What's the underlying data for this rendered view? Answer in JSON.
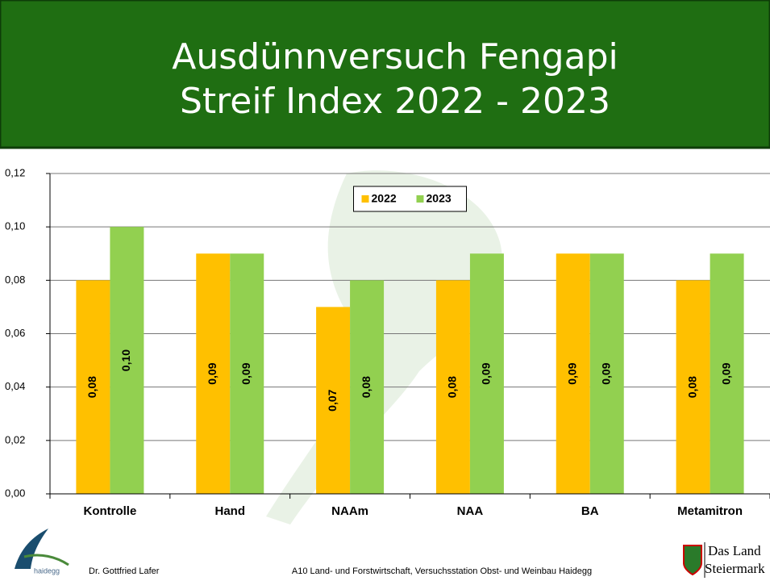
{
  "title_lines": [
    "Ausdünnversuch Fengapi",
    "Streif Index 2022 - 2023"
  ],
  "chart_data": {
    "type": "bar",
    "categories": [
      "Kontrolle",
      "Hand",
      "NAAm",
      "NAA",
      "BA",
      "Metamitron"
    ],
    "series": [
      {
        "name": "2022",
        "color": "#ffc000",
        "values": [
          0.08,
          0.09,
          0.07,
          0.08,
          0.09,
          0.08
        ],
        "value_labels": [
          "0,08",
          "0,09",
          "0,07",
          "0,08",
          "0,09",
          "0,08"
        ]
      },
      {
        "name": "2023",
        "color": "#92d050",
        "values": [
          0.1,
          0.09,
          0.08,
          0.09,
          0.09,
          0.09
        ],
        "value_labels": [
          "0,10",
          "0,09",
          "0,08",
          "0,09",
          "0,09",
          "0,09"
        ]
      }
    ],
    "ylim": [
      0,
      0.12
    ],
    "yticks": [
      {
        "value": 0,
        "label": "0,00"
      },
      {
        "value": 0.02,
        "label": "0,02"
      },
      {
        "value": 0.04,
        "label": "0,04"
      },
      {
        "value": 0.06,
        "label": "0,06"
      },
      {
        "value": 0.08,
        "label": "0,08"
      },
      {
        "value": 0.1,
        "label": "0,10"
      },
      {
        "value": 0.12,
        "label": "0,12"
      }
    ],
    "grid": true,
    "legend": "top"
  },
  "footer": {
    "author": "Dr. Gottfried Lafer",
    "institution": "A10 Land- und Forstwirtschaft, Versuchsstation Obst- und Weinbau Haidegg",
    "logo_left": "haidegg",
    "logo_right": [
      "Das Land",
      "Steiermark"
    ]
  }
}
